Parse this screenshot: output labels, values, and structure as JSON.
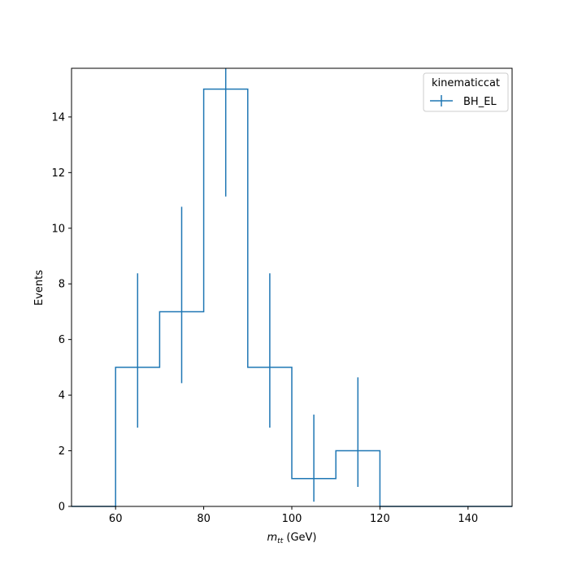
{
  "chart_data": {
    "type": "histogram",
    "xlabel_main": "m",
    "xlabel_sub": "tt",
    "xlabel_unit": " (GeV)",
    "ylabel": "Events",
    "xlim": [
      50,
      150
    ],
    "ylim": [
      0,
      15.75
    ],
    "xticks": [
      60,
      80,
      100,
      120,
      140
    ],
    "yticks": [
      0,
      2,
      4,
      6,
      8,
      10,
      12,
      14
    ],
    "legend_title": "kinematiccat",
    "legend_position": "top-right",
    "grid": false,
    "bin_edges": [
      50,
      60,
      70,
      80,
      90,
      100,
      110,
      120,
      130,
      140,
      150
    ],
    "series": [
      {
        "name": "BH_EL",
        "color": "#1f77b4",
        "values": [
          0,
          5,
          7,
          15,
          5,
          1,
          2,
          0,
          0,
          0
        ],
        "error_bars": [
          {
            "x": 65,
            "low": 2.83,
            "high": 8.38
          },
          {
            "x": 75,
            "low": 4.43,
            "high": 10.77
          },
          {
            "x": 85,
            "low": 11.14,
            "high": 15.75
          },
          {
            "x": 95,
            "low": 2.83,
            "high": 8.38
          },
          {
            "x": 105,
            "low": 0.17,
            "high": 3.3
          },
          {
            "x": 115,
            "low": 0.7,
            "high": 4.64
          }
        ]
      }
    ]
  }
}
